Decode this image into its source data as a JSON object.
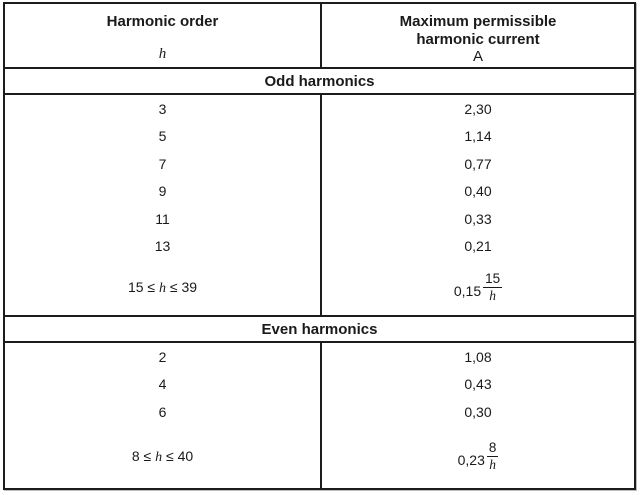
{
  "table": {
    "columns": [
      {
        "title": "Harmonic order",
        "symbol": "h"
      },
      {
        "title_line1": "Maximum permissible",
        "title_line2": "harmonic current",
        "unit": "A"
      }
    ],
    "sections": [
      {
        "title": "Odd harmonics",
        "rows": [
          {
            "order": "3",
            "current": "2,30"
          },
          {
            "order": "5",
            "current": "1,14"
          },
          {
            "order": "7",
            "current": "0,77"
          },
          {
            "order": "9",
            "current": "0,40"
          },
          {
            "order": "11",
            "current": "0,33"
          },
          {
            "order": "13",
            "current": "0,21"
          }
        ],
        "formula_row": {
          "range_pre": "15 ≤ ",
          "range_var": "h",
          "range_post": " ≤ 39",
          "coefficient": "0,15",
          "numerator": "15",
          "denominator": "h"
        }
      },
      {
        "title": "Even harmonics",
        "rows": [
          {
            "order": "2",
            "current": "1,08"
          },
          {
            "order": "4",
            "current": "0,43"
          },
          {
            "order": "6",
            "current": "0,30"
          }
        ],
        "formula_row": {
          "range_pre": "8 ≤ ",
          "range_var": "h",
          "range_post": " ≤ 40",
          "coefficient": "0,23",
          "numerator": "8",
          "denominator": "h"
        }
      }
    ]
  }
}
